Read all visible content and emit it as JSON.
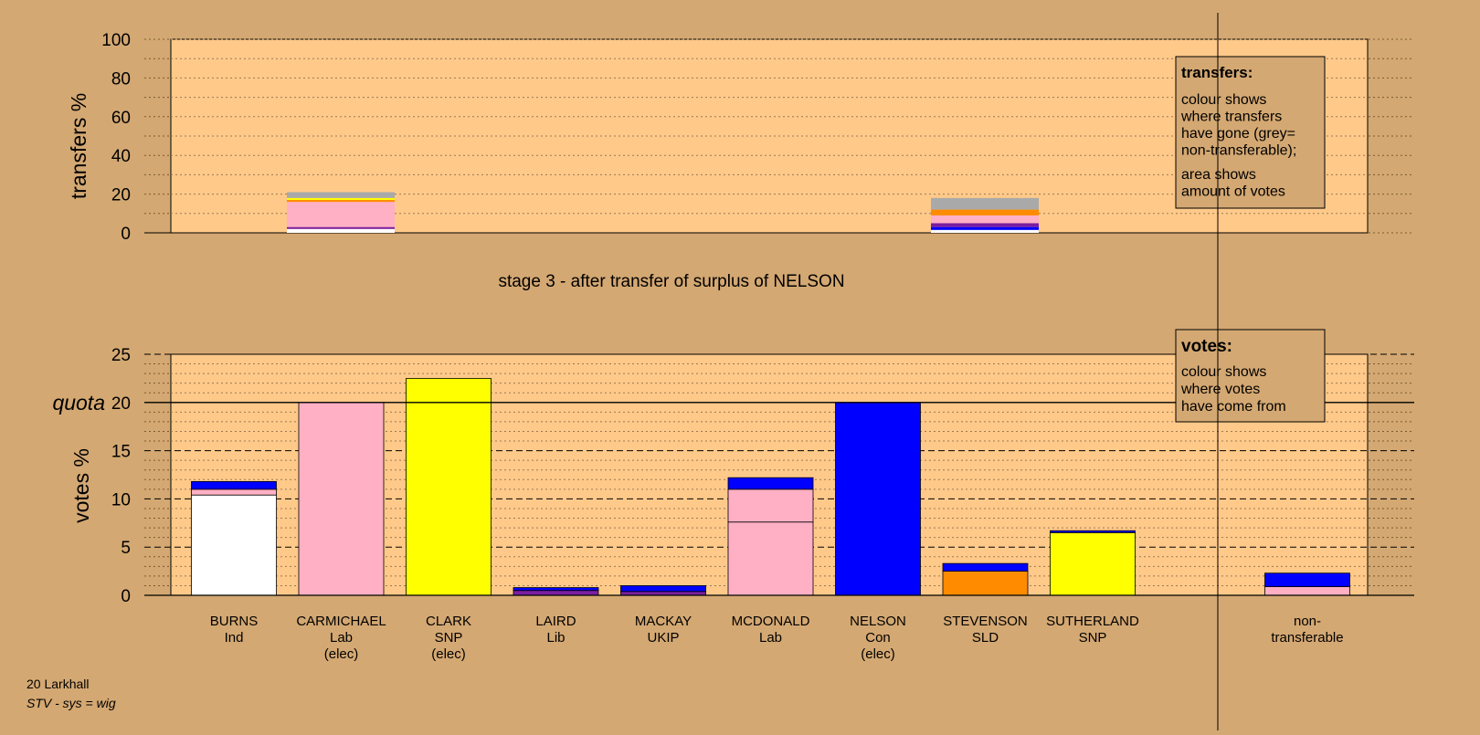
{
  "stage_title": "stage 3 - after transfer of surplus of NELSON",
  "footer": {
    "line1": "20 Larkhall",
    "line2": "STV - sys = wig"
  },
  "colors": {
    "background": "#d4a872",
    "plot_area": "#ffc98a",
    "white": "#ffffff",
    "pink": "#ffb0c4",
    "yellow": "#ffff00",
    "purple": "#7b1fa2",
    "blue": "#0000ff",
    "orange": "#ff8c00",
    "grey": "#a9a9a9",
    "line": "#000000"
  },
  "transfers_legend": {
    "title": "transfers:",
    "lines1": [
      "colour shows",
      "where transfers",
      "have gone (grey=",
      "non-transferable);"
    ],
    "lines2": [
      "area shows",
      "amount of votes"
    ]
  },
  "votes_legend": {
    "title": "votes:",
    "lines": [
      "colour shows",
      "where votes",
      "have come from"
    ]
  },
  "chart_data": [
    {
      "type": "bar",
      "stacked": true,
      "ylabel": "transfers %",
      "ylim": [
        0,
        100
      ],
      "yticks": [
        0,
        20,
        40,
        60,
        80,
        100
      ],
      "grid": "dotted every 10",
      "legend": "top-right",
      "bars": [
        {
          "position": "BURNS",
          "segments": [
            {
              "color": "white",
              "value": 2
            },
            {
              "color": "purple",
              "value": 1
            },
            {
              "color": "pink",
              "value": 13
            },
            {
              "color": "orange",
              "value": 1
            },
            {
              "color": "yellow",
              "value": 1
            },
            {
              "color": "grey",
              "value": 3
            }
          ]
        },
        {
          "position": "NELSON",
          "segments": [
            {
              "color": "white",
              "value": 1.5
            },
            {
              "color": "blue",
              "value": 1.5
            },
            {
              "color": "purple",
              "value": 2
            },
            {
              "color": "pink",
              "value": 4
            },
            {
              "color": "orange",
              "value": 3
            },
            {
              "color": "grey",
              "value": 6
            }
          ]
        }
      ]
    },
    {
      "type": "bar",
      "stacked": true,
      "ylabel": "votes %",
      "ylim": [
        0,
        25
      ],
      "yticks": [
        0,
        5,
        10,
        15,
        20,
        25
      ],
      "quota": 20,
      "quota_label": "quota",
      "grid": "dashed every 5, dotted every 1",
      "legend": "top-right",
      "bars": [
        {
          "name": "BURNS",
          "party": "Ind",
          "elected": "",
          "segments": [
            {
              "color": "white",
              "value": 10.4
            },
            {
              "color": "pink",
              "value": 0.6
            },
            {
              "color": "blue",
              "value": 0.8
            }
          ]
        },
        {
          "name": "CARMICHAEL",
          "party": "Lab",
          "elected": "(elec)",
          "segments": [
            {
              "color": "pink",
              "value": 20
            }
          ]
        },
        {
          "name": "CLARK",
          "party": "SNP",
          "elected": "(elec)",
          "segments": [
            {
              "color": "yellow",
              "value": 22.5
            }
          ]
        },
        {
          "name": "LAIRD",
          "party": "Lib",
          "elected": "",
          "segments": [
            {
              "color": "purple",
              "value": 0.5
            },
            {
              "color": "blue",
              "value": 0.3
            }
          ]
        },
        {
          "name": "MACKAY",
          "party": "UKIP",
          "elected": "",
          "segments": [
            {
              "color": "purple",
              "value": 0.4
            },
            {
              "color": "blue",
              "value": 0.6
            }
          ]
        },
        {
          "name": "MCDONALD",
          "party": "Lab",
          "elected": "",
          "segments": [
            {
              "color": "pink",
              "value": 7.6
            },
            {
              "color": "pink",
              "value": 3.4
            },
            {
              "color": "blue",
              "value": 1.2
            }
          ]
        },
        {
          "name": "NELSON",
          "party": "Con",
          "elected": "(elec)",
          "segments": [
            {
              "color": "blue",
              "value": 20
            }
          ]
        },
        {
          "name": "STEVENSON",
          "party": "SLD",
          "elected": "",
          "segments": [
            {
              "color": "orange",
              "value": 2.5
            },
            {
              "color": "blue",
              "value": 0.8
            }
          ]
        },
        {
          "name": "SUTHERLAND",
          "party": "SNP",
          "elected": "",
          "segments": [
            {
              "color": "yellow",
              "value": 6.5
            },
            {
              "color": "blue",
              "value": 0.2
            }
          ]
        },
        {
          "name": "",
          "party": "",
          "elected": "",
          "segments": []
        },
        {
          "name": "non-",
          "party": "transferable",
          "elected": "",
          "segments": [
            {
              "color": "pink",
              "value": 0.9
            },
            {
              "color": "blue",
              "value": 1.4
            }
          ]
        }
      ]
    }
  ]
}
